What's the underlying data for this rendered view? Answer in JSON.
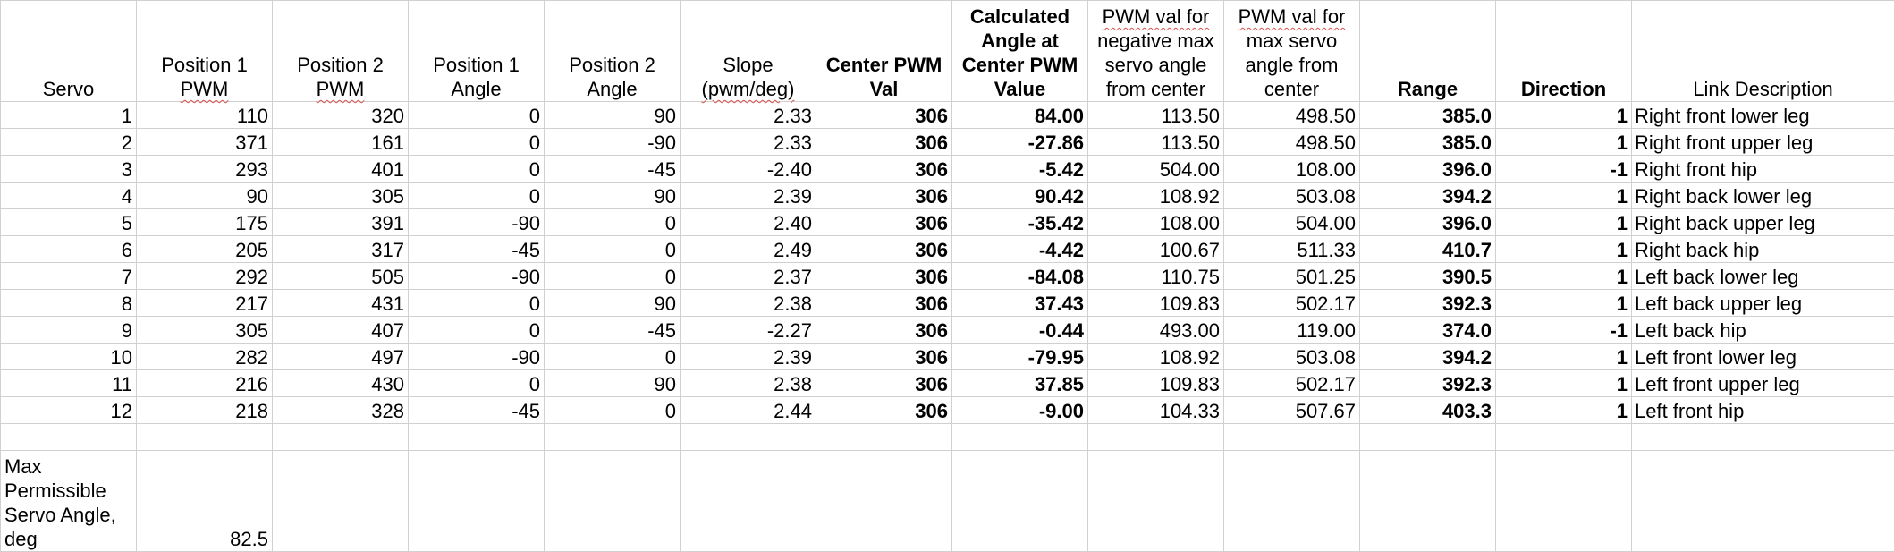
{
  "headers": {
    "servo": "Servo",
    "pos1_pwm": [
      "Position 1",
      "PWM"
    ],
    "pos2_pwm": [
      "Position 2",
      "PWM"
    ],
    "pos1_angle": [
      "Position 1",
      "Angle"
    ],
    "pos2_angle": [
      "Position 2",
      "Angle"
    ],
    "slope": [
      "Slope",
      "(pwm/deg)"
    ],
    "center_pwm": [
      "Center PWM",
      "Val"
    ],
    "calc_angle": [
      "Calculated",
      "Angle at",
      "Center PWM",
      "Value"
    ],
    "pwm_neg": [
      "PWM val for",
      "negative max",
      "servo angle",
      "from center"
    ],
    "pwm_max": [
      "PWM val for",
      "max servo",
      "angle from",
      "center"
    ],
    "range": "Range",
    "direction": "Direction",
    "link": "Link Description"
  },
  "rows": [
    {
      "servo": "1",
      "p1pwm": "110",
      "p2pwm": "320",
      "p1ang": "0",
      "p2ang": "90",
      "slope": "2.33",
      "center": "306",
      "calc": "84.00",
      "neg": "113.50",
      "max": "498.50",
      "range": "385.0",
      "dir": "1",
      "link": "Right front lower leg"
    },
    {
      "servo": "2",
      "p1pwm": "371",
      "p2pwm": "161",
      "p1ang": "0",
      "p2ang": "-90",
      "slope": "2.33",
      "center": "306",
      "calc": "-27.86",
      "neg": "113.50",
      "max": "498.50",
      "range": "385.0",
      "dir": "1",
      "link": "Right front upper leg"
    },
    {
      "servo": "3",
      "p1pwm": "293",
      "p2pwm": "401",
      "p1ang": "0",
      "p2ang": "-45",
      "slope": "-2.40",
      "center": "306",
      "calc": "-5.42",
      "neg": "504.00",
      "max": "108.00",
      "range": "396.0",
      "dir": "-1",
      "link": "Right front hip"
    },
    {
      "servo": "4",
      "p1pwm": "90",
      "p2pwm": "305",
      "p1ang": "0",
      "p2ang": "90",
      "slope": "2.39",
      "center": "306",
      "calc": "90.42",
      "neg": "108.92",
      "max": "503.08",
      "range": "394.2",
      "dir": "1",
      "link": "Right back lower leg"
    },
    {
      "servo": "5",
      "p1pwm": "175",
      "p2pwm": "391",
      "p1ang": "-90",
      "p2ang": "0",
      "slope": "2.40",
      "center": "306",
      "calc": "-35.42",
      "neg": "108.00",
      "max": "504.00",
      "range": "396.0",
      "dir": "1",
      "link": "Right back upper leg"
    },
    {
      "servo": "6",
      "p1pwm": "205",
      "p2pwm": "317",
      "p1ang": "-45",
      "p2ang": "0",
      "slope": "2.49",
      "center": "306",
      "calc": "-4.42",
      "neg": "100.67",
      "max": "511.33",
      "range": "410.7",
      "dir": "1",
      "link": "Right back hip"
    },
    {
      "servo": "7",
      "p1pwm": "292",
      "p2pwm": "505",
      "p1ang": "-90",
      "p2ang": "0",
      "slope": "2.37",
      "center": "306",
      "calc": "-84.08",
      "neg": "110.75",
      "max": "501.25",
      "range": "390.5",
      "dir": "1",
      "link": "Left back lower leg"
    },
    {
      "servo": "8",
      "p1pwm": "217",
      "p2pwm": "431",
      "p1ang": "0",
      "p2ang": "90",
      "slope": "2.38",
      "center": "306",
      "calc": "37.43",
      "neg": "109.83",
      "max": "502.17",
      "range": "392.3",
      "dir": "1",
      "link": "Left back upper leg"
    },
    {
      "servo": "9",
      "p1pwm": "305",
      "p2pwm": "407",
      "p1ang": "0",
      "p2ang": "-45",
      "slope": "-2.27",
      "center": "306",
      "calc": "-0.44",
      "neg": "493.00",
      "max": "119.00",
      "range": "374.0",
      "dir": "-1",
      "link": "Left back hip"
    },
    {
      "servo": "10",
      "p1pwm": "282",
      "p2pwm": "497",
      "p1ang": "-90",
      "p2ang": "0",
      "slope": "2.39",
      "center": "306",
      "calc": "-79.95",
      "neg": "108.92",
      "max": "503.08",
      "range": "394.2",
      "dir": "1",
      "link": "Left front lower leg"
    },
    {
      "servo": "11",
      "p1pwm": "216",
      "p2pwm": "430",
      "p1ang": "0",
      "p2ang": "90",
      "slope": "2.38",
      "center": "306",
      "calc": "37.85",
      "neg": "109.83",
      "max": "502.17",
      "range": "392.3",
      "dir": "1",
      "link": "Left front upper leg"
    },
    {
      "servo": "12",
      "p1pwm": "218",
      "p2pwm": "328",
      "p1ang": "-45",
      "p2ang": "0",
      "slope": "2.44",
      "center": "306",
      "calc": "-9.00",
      "neg": "104.33",
      "max": "507.67",
      "range": "403.3",
      "dir": "1",
      "link": "Left front hip"
    }
  ],
  "footer": {
    "label": [
      "Max",
      "Permissible",
      "Servo Angle,",
      "deg"
    ],
    "value": "82.5"
  }
}
